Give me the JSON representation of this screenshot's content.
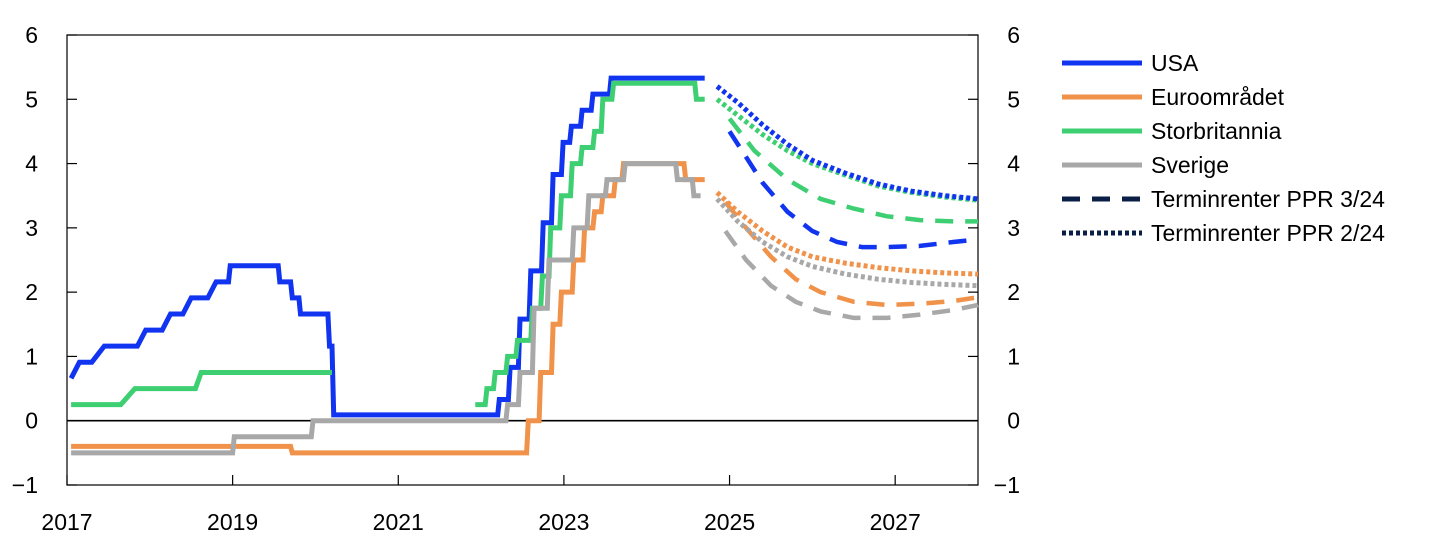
{
  "chart_data": {
    "type": "line",
    "title": "",
    "xlabel": "",
    "ylabel": "",
    "xlim": [
      2017,
      2028
    ],
    "ylim": [
      -1,
      6
    ],
    "x_ticks": [
      "2017",
      "2019",
      "2021",
      "2023",
      "2025",
      "2027"
    ],
    "y_ticks_left": [
      "6",
      "5",
      "4",
      "3",
      "2",
      "1",
      "0",
      "−1"
    ],
    "y_ticks_right": [
      "6",
      "5",
      "4",
      "3",
      "2",
      "1",
      "0",
      "−1"
    ],
    "grid": false,
    "legend_position": "right",
    "colors": {
      "USA": "#1034f0",
      "Euroområdet": "#f0924a",
      "Storbritannia": "#3ecf73",
      "Sverige": "#a8a8a8",
      "legend_style": "#0b1e45"
    },
    "legend": [
      {
        "label": "USA",
        "style": "solid",
        "color_key": "USA"
      },
      {
        "label": "Euroområdet",
        "style": "solid",
        "color_key": "Euroområdet"
      },
      {
        "label": "Storbritannia",
        "style": "solid",
        "color_key": "Storbritannia"
      },
      {
        "label": "Sverige",
        "style": "solid",
        "color_key": "Sverige"
      },
      {
        "label": "Terminrenter PPR 3/24",
        "style": "dashed",
        "color_key": "legend_style"
      },
      {
        "label": "Terminrenter PPR 2/24",
        "style": "dotted",
        "color_key": "legend_style"
      }
    ],
    "series": [
      {
        "name": "USA",
        "style": "solid",
        "color_key": "USA",
        "points": [
          [
            2017.05,
            0.66
          ],
          [
            2017.15,
            0.91
          ],
          [
            2017.3,
            0.91
          ],
          [
            2017.45,
            1.16
          ],
          [
            2017.85,
            1.16
          ],
          [
            2017.95,
            1.41
          ],
          [
            2018.15,
            1.41
          ],
          [
            2018.25,
            1.66
          ],
          [
            2018.4,
            1.66
          ],
          [
            2018.5,
            1.91
          ],
          [
            2018.7,
            1.91
          ],
          [
            2018.8,
            2.16
          ],
          [
            2018.95,
            2.16
          ],
          [
            2018.97,
            2.41
          ],
          [
            2019.55,
            2.41
          ],
          [
            2019.57,
            2.16
          ],
          [
            2019.7,
            2.16
          ],
          [
            2019.72,
            1.91
          ],
          [
            2019.8,
            1.91
          ],
          [
            2019.82,
            1.66
          ],
          [
            2020.15,
            1.66
          ],
          [
            2020.17,
            1.16
          ],
          [
            2020.2,
            1.16
          ],
          [
            2020.22,
            0.09
          ],
          [
            2022.2,
            0.09
          ],
          [
            2022.22,
            0.33
          ],
          [
            2022.33,
            0.33
          ],
          [
            2022.35,
            0.83
          ],
          [
            2022.45,
            0.83
          ],
          [
            2022.47,
            1.58
          ],
          [
            2022.58,
            1.58
          ],
          [
            2022.6,
            2.33
          ],
          [
            2022.73,
            2.33
          ],
          [
            2022.75,
            3.08
          ],
          [
            2022.85,
            3.08
          ],
          [
            2022.87,
            3.83
          ],
          [
            2022.97,
            3.83
          ],
          [
            2022.99,
            4.33
          ],
          [
            2023.07,
            4.33
          ],
          [
            2023.09,
            4.58
          ],
          [
            2023.2,
            4.58
          ],
          [
            2023.22,
            4.83
          ],
          [
            2023.33,
            4.83
          ],
          [
            2023.35,
            5.08
          ],
          [
            2023.55,
            5.08
          ],
          [
            2023.57,
            5.33
          ],
          [
            2024.7,
            5.33
          ]
        ]
      },
      {
        "name": "Euroområdet",
        "style": "solid",
        "color_key": "Euroområdet",
        "points": [
          [
            2017.05,
            -0.4
          ],
          [
            2019.7,
            -0.4
          ],
          [
            2019.72,
            -0.5
          ],
          [
            2022.55,
            -0.5
          ],
          [
            2022.57,
            0.0
          ],
          [
            2022.7,
            0.0
          ],
          [
            2022.72,
            0.75
          ],
          [
            2022.85,
            0.75
          ],
          [
            2022.87,
            1.5
          ],
          [
            2022.95,
            1.5
          ],
          [
            2022.97,
            2.0
          ],
          [
            2023.1,
            2.0
          ],
          [
            2023.12,
            2.5
          ],
          [
            2023.23,
            2.5
          ],
          [
            2023.25,
            3.0
          ],
          [
            2023.35,
            3.0
          ],
          [
            2023.37,
            3.25
          ],
          [
            2023.45,
            3.25
          ],
          [
            2023.47,
            3.5
          ],
          [
            2023.6,
            3.5
          ],
          [
            2023.62,
            3.75
          ],
          [
            2023.7,
            3.75
          ],
          [
            2023.72,
            4.0
          ],
          [
            2024.45,
            4.0
          ],
          [
            2024.47,
            3.75
          ],
          [
            2024.7,
            3.75
          ]
        ]
      },
      {
        "name": "Storbritannia",
        "style": "solid",
        "color_key": "Storbritannia",
        "points": [
          [
            2017.05,
            0.25
          ],
          [
            2017.65,
            0.25
          ],
          [
            2017.82,
            0.5
          ],
          [
            2018.55,
            0.5
          ],
          [
            2018.62,
            0.75
          ],
          [
            2020.2,
            0.75
          ]
        ]
      },
      {
        "name": "Storbritannia",
        "style": "solid",
        "color_key": "Storbritannia",
        "points": [
          [
            2021.93,
            0.25
          ],
          [
            2022.05,
            0.25
          ],
          [
            2022.07,
            0.5
          ],
          [
            2022.15,
            0.5
          ],
          [
            2022.17,
            0.75
          ],
          [
            2022.3,
            0.75
          ],
          [
            2022.32,
            1.0
          ],
          [
            2022.42,
            1.0
          ],
          [
            2022.44,
            1.25
          ],
          [
            2022.6,
            1.25
          ],
          [
            2022.62,
            1.75
          ],
          [
            2022.72,
            1.75
          ],
          [
            2022.74,
            2.25
          ],
          [
            2022.82,
            2.25
          ],
          [
            2022.84,
            3.0
          ],
          [
            2022.95,
            3.0
          ],
          [
            2022.97,
            3.5
          ],
          [
            2023.08,
            3.5
          ],
          [
            2023.1,
            4.0
          ],
          [
            2023.2,
            4.0
          ],
          [
            2023.22,
            4.25
          ],
          [
            2023.35,
            4.25
          ],
          [
            2023.37,
            4.5
          ],
          [
            2023.45,
            4.5
          ],
          [
            2023.47,
            5.0
          ],
          [
            2023.58,
            5.0
          ],
          [
            2023.6,
            5.25
          ],
          [
            2024.58,
            5.25
          ],
          [
            2024.6,
            5.0
          ],
          [
            2024.7,
            5.0
          ]
        ]
      },
      {
        "name": "Sverige",
        "style": "solid",
        "color_key": "Sverige",
        "points": [
          [
            2017.05,
            -0.5
          ],
          [
            2019.0,
            -0.5
          ],
          [
            2019.02,
            -0.25
          ],
          [
            2019.95,
            -0.25
          ],
          [
            2019.97,
            0.0
          ],
          [
            2022.3,
            0.0
          ],
          [
            2022.32,
            0.25
          ],
          [
            2022.45,
            0.25
          ],
          [
            2022.47,
            0.75
          ],
          [
            2022.62,
            0.75
          ],
          [
            2022.64,
            1.75
          ],
          [
            2022.8,
            1.75
          ],
          [
            2022.82,
            2.5
          ],
          [
            2023.1,
            2.5
          ],
          [
            2023.12,
            3.0
          ],
          [
            2023.28,
            3.0
          ],
          [
            2023.3,
            3.5
          ],
          [
            2023.5,
            3.5
          ],
          [
            2023.52,
            3.75
          ],
          [
            2023.72,
            3.75
          ],
          [
            2023.74,
            4.0
          ],
          [
            2024.35,
            4.0
          ],
          [
            2024.37,
            3.75
          ],
          [
            2024.55,
            3.75
          ],
          [
            2024.57,
            3.5
          ],
          [
            2024.65,
            3.5
          ]
        ]
      },
      {
        "name": "USA",
        "style": "dashed",
        "color_key": "USA",
        "points": [
          [
            2025.0,
            4.5
          ],
          [
            2025.15,
            4.2
          ],
          [
            2025.4,
            3.7
          ],
          [
            2025.7,
            3.25
          ],
          [
            2026.0,
            2.95
          ],
          [
            2026.3,
            2.78
          ],
          [
            2026.6,
            2.7
          ],
          [
            2026.9,
            2.7
          ],
          [
            2027.3,
            2.72
          ],
          [
            2027.7,
            2.78
          ],
          [
            2028.0,
            2.82
          ]
        ]
      },
      {
        "name": "Storbritannia",
        "style": "dashed",
        "color_key": "Storbritannia",
        "points": [
          [
            2025.0,
            4.7
          ],
          [
            2025.3,
            4.2
          ],
          [
            2025.7,
            3.75
          ],
          [
            2026.1,
            3.45
          ],
          [
            2026.5,
            3.3
          ],
          [
            2026.9,
            3.18
          ],
          [
            2027.3,
            3.12
          ],
          [
            2027.7,
            3.1
          ],
          [
            2028.0,
            3.1
          ]
        ]
      },
      {
        "name": "Euroområdet",
        "style": "dashed",
        "color_key": "Euroområdet",
        "points": [
          [
            2024.95,
            3.4
          ],
          [
            2025.2,
            3.0
          ],
          [
            2025.5,
            2.55
          ],
          [
            2025.8,
            2.2
          ],
          [
            2026.1,
            2.0
          ],
          [
            2026.5,
            1.85
          ],
          [
            2026.9,
            1.8
          ],
          [
            2027.3,
            1.82
          ],
          [
            2027.7,
            1.86
          ],
          [
            2028.0,
            1.92
          ]
        ]
      },
      {
        "name": "Sverige",
        "style": "dashed",
        "color_key": "Sverige",
        "points": [
          [
            2024.95,
            2.95
          ],
          [
            2025.2,
            2.5
          ],
          [
            2025.5,
            2.1
          ],
          [
            2025.8,
            1.85
          ],
          [
            2026.1,
            1.7
          ],
          [
            2026.5,
            1.6
          ],
          [
            2026.9,
            1.6
          ],
          [
            2027.3,
            1.65
          ],
          [
            2027.7,
            1.72
          ],
          [
            2028.0,
            1.8
          ]
        ]
      },
      {
        "name": "Storbritannia",
        "style": "dotted",
        "color_key": "Storbritannia",
        "points": [
          [
            2024.85,
            5.0
          ],
          [
            2025.1,
            4.75
          ],
          [
            2025.4,
            4.45
          ],
          [
            2025.7,
            4.2
          ],
          [
            2026.0,
            4.0
          ],
          [
            2026.4,
            3.82
          ],
          [
            2026.8,
            3.65
          ],
          [
            2027.2,
            3.55
          ],
          [
            2027.6,
            3.48
          ],
          [
            2028.0,
            3.43
          ]
        ]
      },
      {
        "name": "USA",
        "style": "dotted",
        "color_key": "USA",
        "points": [
          [
            2024.85,
            5.2
          ],
          [
            2025.1,
            4.95
          ],
          [
            2025.4,
            4.6
          ],
          [
            2025.7,
            4.3
          ],
          [
            2026.0,
            4.05
          ],
          [
            2026.4,
            3.85
          ],
          [
            2026.8,
            3.68
          ],
          [
            2027.2,
            3.57
          ],
          [
            2027.6,
            3.5
          ],
          [
            2028.0,
            3.45
          ]
        ]
      },
      {
        "name": "Euroområdet",
        "style": "dotted",
        "color_key": "Euroområdet",
        "points": [
          [
            2024.85,
            3.55
          ],
          [
            2025.1,
            3.25
          ],
          [
            2025.4,
            2.95
          ],
          [
            2025.7,
            2.7
          ],
          [
            2026.0,
            2.55
          ],
          [
            2026.4,
            2.45
          ],
          [
            2026.8,
            2.38
          ],
          [
            2027.2,
            2.33
          ],
          [
            2027.6,
            2.3
          ],
          [
            2028.0,
            2.28
          ]
        ]
      },
      {
        "name": "Sverige",
        "style": "dotted",
        "color_key": "Sverige",
        "points": [
          [
            2024.85,
            3.45
          ],
          [
            2025.1,
            3.1
          ],
          [
            2025.4,
            2.78
          ],
          [
            2025.7,
            2.55
          ],
          [
            2026.0,
            2.4
          ],
          [
            2026.4,
            2.28
          ],
          [
            2026.8,
            2.2
          ],
          [
            2027.2,
            2.15
          ],
          [
            2027.6,
            2.12
          ],
          [
            2028.0,
            2.1
          ]
        ]
      }
    ]
  }
}
